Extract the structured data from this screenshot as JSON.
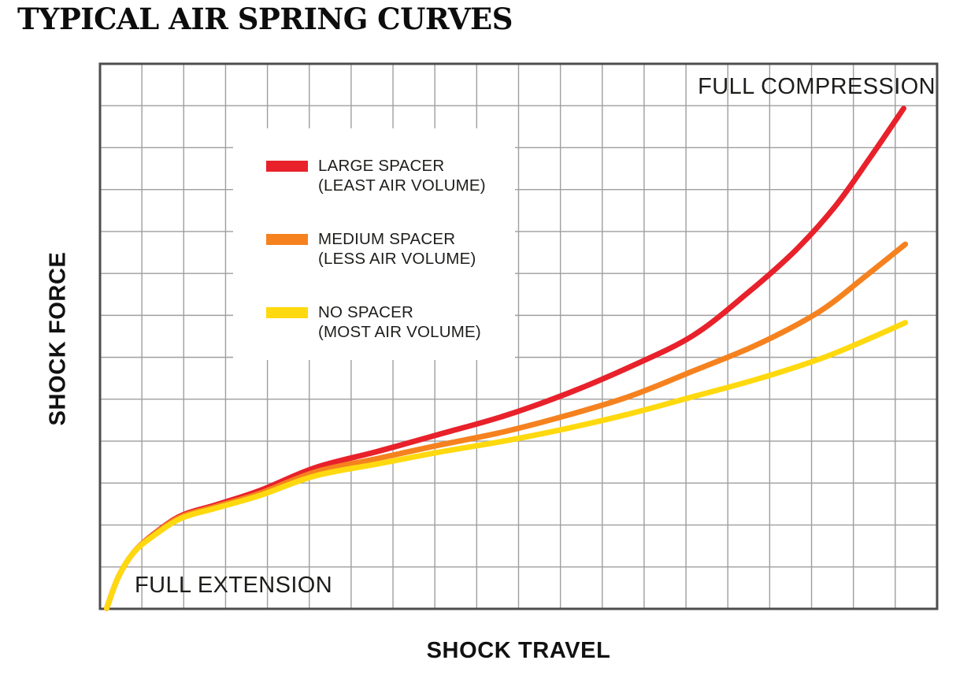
{
  "title": "TYPICAL AIR SPRING CURVES",
  "axes": {
    "x_label": "SHOCK TRAVEL",
    "y_label": "SHOCK FORCE"
  },
  "annotations": {
    "top_right": "FULL COMPRESSION",
    "bottom_left": "FULL EXTENSION"
  },
  "legend": {
    "items": [
      {
        "label": "LARGE SPACER",
        "sublabel": "(LEAST AIR VOLUME)",
        "color": "#E8212B"
      },
      {
        "label": "MEDIUM SPACER",
        "sublabel": "(LESS AIR VOLUME)",
        "color": "#F5821F"
      },
      {
        "label": "NO SPACER",
        "sublabel": "(MOST AIR VOLUME)",
        "color": "#FFD90F"
      }
    ]
  },
  "chart_data": {
    "type": "line",
    "title": "TYPICAL AIR SPRING CURVES",
    "xlabel": "SHOCK TRAVEL",
    "ylabel": "SHOCK FORCE",
    "x_range_labels": [
      "FULL EXTENSION",
      "FULL COMPRESSION"
    ],
    "axis_ticks": "none (qualitative axes; point units are percent of axis span)",
    "legend_position": "upper-left inside plot, white panel",
    "grid": {
      "cols": 20,
      "rows": 13,
      "color": "#9E9E9E",
      "border_color": "#4D4D4D",
      "border_width": 3,
      "line_width": 1.4
    },
    "stroke_width": 7,
    "series": [
      {
        "name": "LARGE SPACER (LEAST AIR VOLUME)",
        "color": "#E8212B",
        "points": [
          [
            0.8,
            0.1
          ],
          [
            2.2,
            5.9
          ],
          [
            4.0,
            10.3
          ],
          [
            6.4,
            13.7
          ],
          [
            9.7,
            17.1
          ],
          [
            13.9,
            19.1
          ],
          [
            19.1,
            21.7
          ],
          [
            25.7,
            25.9
          ],
          [
            33.2,
            28.9
          ],
          [
            40.7,
            32.1
          ],
          [
            48.3,
            35.4
          ],
          [
            55.8,
            39.5
          ],
          [
            63.3,
            44.4
          ],
          [
            70.8,
            50.1
          ],
          [
            77.4,
            58.0
          ],
          [
            83.1,
            65.8
          ],
          [
            87.8,
            73.8
          ],
          [
            92.0,
            82.8
          ],
          [
            96.0,
            91.8
          ]
        ]
      },
      {
        "name": "MEDIUM SPACER (LESS AIR VOLUME)",
        "color": "#F5821F",
        "points": [
          [
            0.8,
            0.1
          ],
          [
            2.2,
            5.9
          ],
          [
            4.0,
            10.3
          ],
          [
            6.4,
            13.6
          ],
          [
            9.7,
            16.9
          ],
          [
            13.9,
            18.8
          ],
          [
            19.1,
            21.2
          ],
          [
            25.7,
            25.1
          ],
          [
            33.2,
            27.6
          ],
          [
            40.7,
            30.1
          ],
          [
            48.3,
            32.5
          ],
          [
            55.8,
            35.5
          ],
          [
            63.3,
            39.0
          ],
          [
            70.8,
            43.6
          ],
          [
            78.4,
            48.4
          ],
          [
            85.9,
            54.5
          ],
          [
            91.5,
            61.1
          ],
          [
            96.2,
            66.9
          ]
        ]
      },
      {
        "name": "NO SPACER (MOST AIR VOLUME)",
        "color": "#FFD90F",
        "points": [
          [
            0.8,
            0.1
          ],
          [
            2.2,
            5.9
          ],
          [
            4.0,
            10.3
          ],
          [
            6.4,
            13.4
          ],
          [
            9.7,
            16.6
          ],
          [
            13.9,
            18.5
          ],
          [
            19.1,
            20.8
          ],
          [
            25.7,
            24.4
          ],
          [
            33.2,
            26.6
          ],
          [
            40.7,
            28.8
          ],
          [
            48.3,
            30.8
          ],
          [
            55.8,
            33.1
          ],
          [
            63.3,
            35.8
          ],
          [
            70.8,
            38.9
          ],
          [
            78.4,
            42.1
          ],
          [
            85.9,
            45.8
          ],
          [
            91.5,
            49.3
          ],
          [
            96.2,
            52.5
          ]
        ]
      }
    ]
  }
}
